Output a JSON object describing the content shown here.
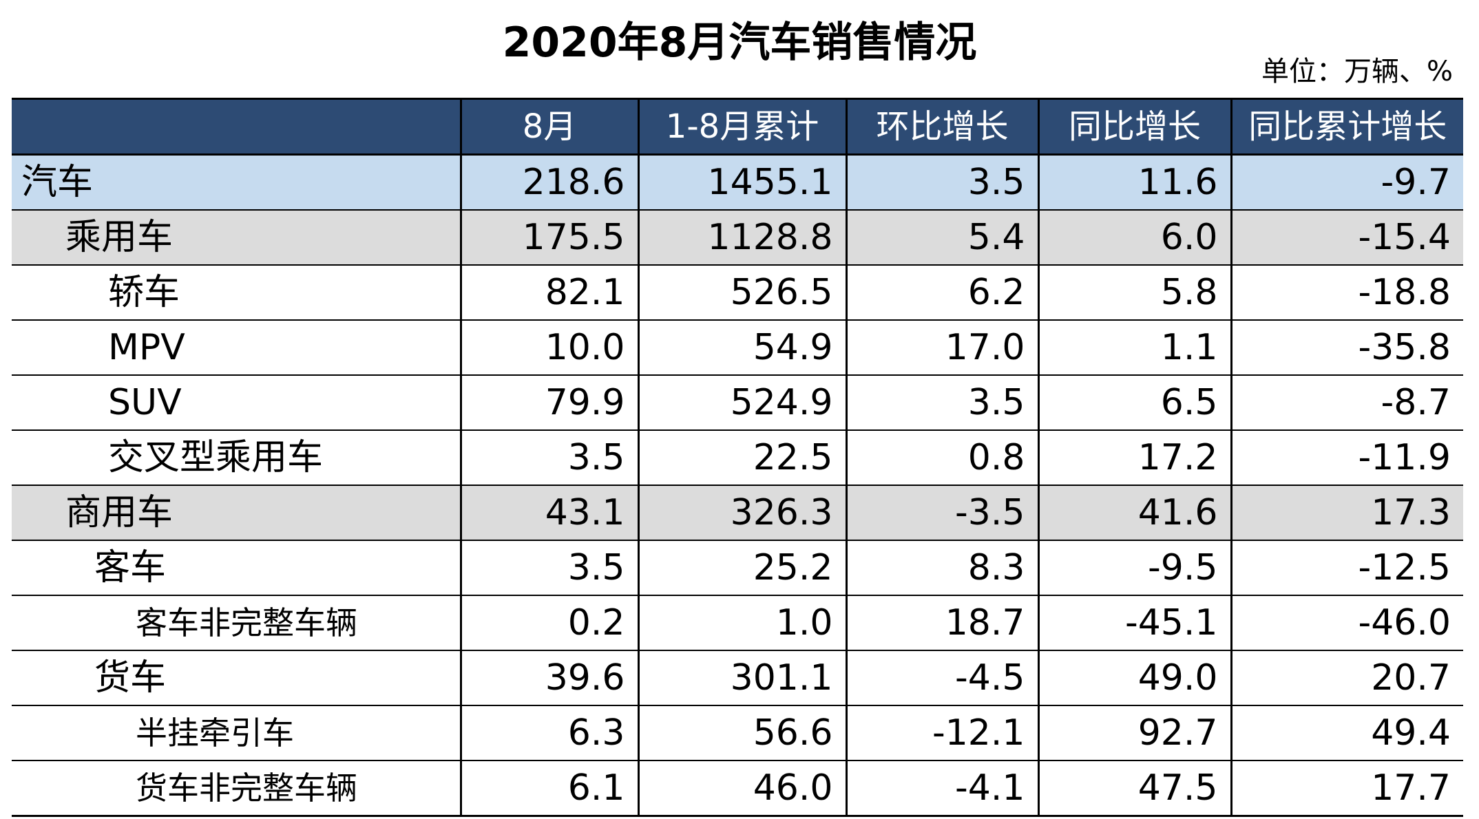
{
  "chart_data": {
    "type": "table",
    "title": "2020年8月汽车销售情况",
    "unit_note": "单位：万辆、%",
    "columns": [
      "",
      "8月",
      "1-8月累计",
      "环比增长",
      "同比增长",
      "同比累计增长"
    ],
    "rows": [
      {
        "name": "汽车",
        "level": 0,
        "values": [
          "218.6",
          "1455.1",
          "3.5",
          "11.6",
          "-9.7"
        ]
      },
      {
        "name": "乘用车",
        "level": 1,
        "values": [
          "175.5",
          "1128.8",
          "5.4",
          "6.0",
          "-15.4"
        ]
      },
      {
        "name": "轿车",
        "level": 2,
        "values": [
          "82.1",
          "526.5",
          "6.2",
          "5.8",
          "-18.8"
        ]
      },
      {
        "name": "MPV",
        "level": 2,
        "values": [
          "10.0",
          "54.9",
          "17.0",
          "1.1",
          "-35.8"
        ]
      },
      {
        "name": "SUV",
        "level": 2,
        "values": [
          "79.9",
          "524.9",
          "3.5",
          "6.5",
          "-8.7"
        ]
      },
      {
        "name": "交叉型乘用车",
        "level": 2,
        "values": [
          "3.5",
          "22.5",
          "0.8",
          "17.2",
          "-11.9"
        ]
      },
      {
        "name": "商用车",
        "level": 1,
        "values": [
          "43.1",
          "326.3",
          "-3.5",
          "41.6",
          "17.3"
        ]
      },
      {
        "name": "客车",
        "level": "2b",
        "values": [
          "3.5",
          "25.2",
          "8.3",
          "-9.5",
          "-12.5"
        ]
      },
      {
        "name": "客车非完整车辆",
        "level": 3,
        "values": [
          "0.2",
          "1.0",
          "18.7",
          "-45.1",
          "-46.0"
        ]
      },
      {
        "name": "货车",
        "level": "2b",
        "values": [
          "39.6",
          "301.1",
          "-4.5",
          "49.0",
          "20.7"
        ]
      },
      {
        "name": "半挂牵引车",
        "level": 3,
        "values": [
          "6.3",
          "56.6",
          "-12.1",
          "92.7",
          "49.4"
        ]
      },
      {
        "name": "货车非完整车辆",
        "level": 3,
        "values": [
          "6.1",
          "46.0",
          "-4.1",
          "47.5",
          "17.7"
        ]
      }
    ]
  },
  "colors": {
    "header_bg": "#2d4b74",
    "header_text": "#ffffff",
    "total_row_bg": "#c6dbef",
    "subtotal_row_bg": "#dcdcdc",
    "border": "#000000"
  }
}
